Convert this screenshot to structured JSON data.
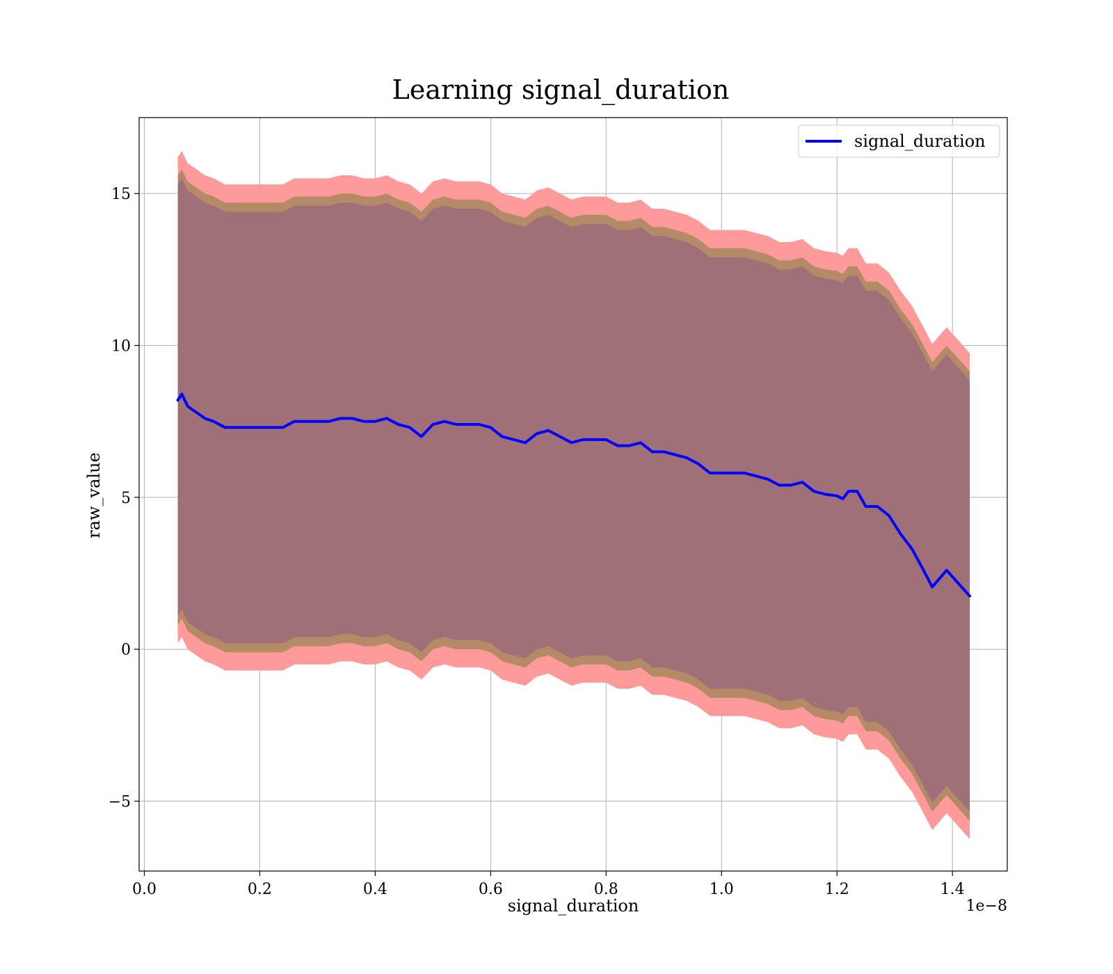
{
  "chart_data": {
    "type": "line",
    "title": "Learning signal_duration",
    "xlabel": "signal_duration",
    "ylabel": "raw_value",
    "x_offset_label": "1e−8",
    "xlim": [
      -0.009,
      1.495
    ],
    "ylim": [
      -7.3,
      17.5
    ],
    "grid": true,
    "legend_position": "top-right",
    "x_ticks": [
      0.0,
      0.2,
      0.4,
      0.6,
      0.8,
      1.0,
      1.2,
      1.4
    ],
    "x_tick_labels": [
      "0.0",
      "0.2",
      "0.4",
      "0.6",
      "0.8",
      "1.0",
      "1.2",
      "1.4"
    ],
    "y_ticks": [
      -5,
      0,
      5,
      10,
      15
    ],
    "y_tick_labels": [
      "−5",
      "0",
      "5",
      "10",
      "15"
    ],
    "colors": {
      "line": "#0000ff",
      "outer_band": "#ff9a9a",
      "mid_band": "#b58a66",
      "inner_band": "#a07078"
    },
    "series": [
      {
        "name": "signal_duration",
        "x": [
          0.058,
          0.065,
          0.075,
          0.09,
          0.105,
          0.12,
          0.14,
          0.16,
          0.18,
          0.2,
          0.22,
          0.24,
          0.26,
          0.28,
          0.3,
          0.32,
          0.34,
          0.36,
          0.38,
          0.4,
          0.42,
          0.44,
          0.46,
          0.48,
          0.5,
          0.52,
          0.54,
          0.56,
          0.58,
          0.6,
          0.62,
          0.64,
          0.66,
          0.68,
          0.7,
          0.72,
          0.74,
          0.76,
          0.78,
          0.8,
          0.82,
          0.84,
          0.86,
          0.88,
          0.9,
          0.92,
          0.94,
          0.96,
          0.98,
          1.0,
          1.02,
          1.04,
          1.06,
          1.08,
          1.1,
          1.12,
          1.14,
          1.16,
          1.18,
          1.2,
          1.21,
          1.22,
          1.235,
          1.25,
          1.27,
          1.29,
          1.31,
          1.33,
          1.35,
          1.365,
          1.39,
          1.43
        ],
        "y": [
          8.2,
          8.4,
          8.0,
          7.8,
          7.6,
          7.5,
          7.3,
          7.3,
          7.3,
          7.3,
          7.3,
          7.3,
          7.5,
          7.5,
          7.5,
          7.5,
          7.6,
          7.6,
          7.5,
          7.5,
          7.6,
          7.4,
          7.3,
          7.0,
          7.4,
          7.5,
          7.4,
          7.4,
          7.4,
          7.3,
          7.0,
          6.9,
          6.8,
          7.1,
          7.2,
          7.0,
          6.8,
          6.9,
          6.9,
          6.9,
          6.7,
          6.7,
          6.8,
          6.5,
          6.5,
          6.4,
          6.3,
          6.1,
          5.8,
          5.8,
          5.8,
          5.8,
          5.7,
          5.6,
          5.4,
          5.4,
          5.5,
          5.2,
          5.1,
          5.05,
          4.95,
          5.2,
          5.2,
          4.7,
          4.7,
          4.4,
          3.8,
          3.3,
          2.6,
          2.05,
          2.6,
          1.75
        ]
      }
    ],
    "bands": [
      {
        "upper_offset": 8.0,
        "lower_offset": 8.0,
        "color": "#ff9a9a"
      },
      {
        "upper_offset": 7.4,
        "lower_offset": 7.4,
        "color": "#b58a66"
      },
      {
        "upper_offset": 7.1,
        "lower_offset": 7.1,
        "color": "#a07078"
      }
    ]
  }
}
